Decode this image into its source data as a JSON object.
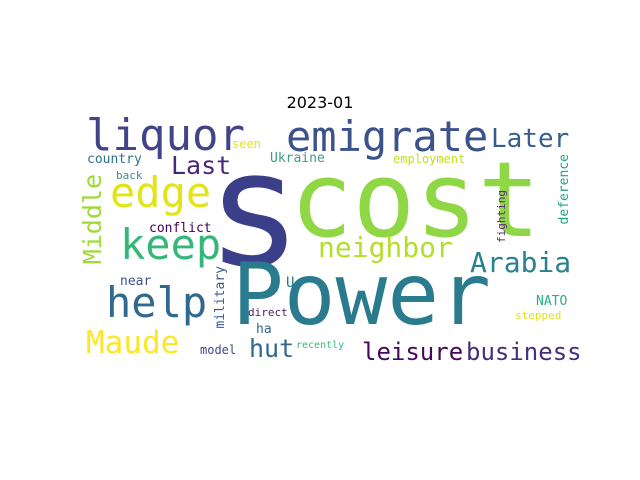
{
  "title": "2023-01",
  "words": {
    "s": {
      "text": "s",
      "color": "#3b3f8a"
    },
    "cost": {
      "text": "cost",
      "color": "#8fd744"
    },
    "power": {
      "text": "Power",
      "color": "#2a7b8e"
    },
    "liquor": {
      "text": "liquor",
      "color": "#414487"
    },
    "emigrate": {
      "text": "emigrate",
      "color": "#3b528b"
    },
    "later": {
      "text": "Later",
      "color": "#355f8d"
    },
    "last": {
      "text": "Last",
      "color": "#482878"
    },
    "edge": {
      "text": "edge",
      "color": "#e2e418"
    },
    "keep": {
      "text": "keep",
      "color": "#35b779"
    },
    "neighbor": {
      "text": "neighbor",
      "color": "#b5de2b"
    },
    "arabia": {
      "text": "Arabia",
      "color": "#26828e"
    },
    "middle": {
      "text": "Middle",
      "color": "#a0da39"
    },
    "help": {
      "text": "help",
      "color": "#31688e"
    },
    "maude": {
      "text": "Maude",
      "color": "#fde725"
    },
    "hut": {
      "text": "hut",
      "color": "#30678d"
    },
    "leisure": {
      "text": "leisure",
      "color": "#46085c"
    },
    "business": {
      "text": "business",
      "color": "#472d7b"
    },
    "country": {
      "text": "country",
      "color": "#2c728e"
    },
    "ukraine": {
      "text": "Ukraine",
      "color": "#3e9b8a"
    },
    "employment": {
      "text": "employment",
      "color": "#c0df25"
    },
    "seen": {
      "text": "seen",
      "color": "#e6e419"
    },
    "back": {
      "text": "back",
      "color": "#3e8a8c"
    },
    "conflict": {
      "text": "conflict",
      "color": "#440154"
    },
    "near": {
      "text": "near",
      "color": "#3b528b"
    },
    "military": {
      "text": "military",
      "color": "#365c8d"
    },
    "u": {
      "text": "U",
      "color": "#2a788e"
    },
    "ha": {
      "text": "ha",
      "color": "#31688e"
    },
    "direct": {
      "text": "direct",
      "color": "#482173"
    },
    "model": {
      "text": "model",
      "color": "#3f4788"
    },
    "recently": {
      "text": "recently",
      "color": "#35b779"
    },
    "nato": {
      "text": "NATO",
      "color": "#29af7f"
    },
    "stepped": {
      "text": "stepped",
      "color": "#dde318"
    },
    "deference": {
      "text": "deference",
      "color": "#20a386"
    },
    "fighting": {
      "text": "fighting",
      "color": "#5c2c7c"
    }
  }
}
